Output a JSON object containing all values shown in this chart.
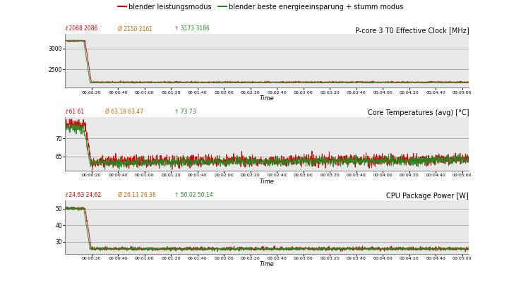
{
  "legend_red": "blender leistungsmodus",
  "legend_green": "blender beste energieeinsparung + stumm modus",
  "chart1": {
    "title": "P-core 3 T0 Effective Clock [MHz]",
    "stats_red": "ℓ 2068 2086",
    "stats_avg": "Ø 2150 2161",
    "stats_green": "↑ 3173 3186",
    "ylim": [
      2050,
      3350
    ],
    "yticks": [
      2500,
      3000
    ],
    "baseline_red": 2186,
    "baseline_green": 2175,
    "peak_red": 3186,
    "peak_green": 3200,
    "drop_sec": 15,
    "noise_red": 8,
    "noise_green": 5
  },
  "chart2": {
    "title": "Core Temperatures (avg) [°C]",
    "stats_red": "ℓ 61 61",
    "stats_avg": "Ø 63,18 63,47",
    "stats_green": "↑ 73 73",
    "ylim": [
      61,
      76
    ],
    "yticks": [
      65,
      70
    ],
    "baseline_red": 63.5,
    "baseline_green": 63.2,
    "peak_red": 74,
    "peak_green": 73,
    "drop_sec": 15,
    "noise_red": 0.8,
    "noise_green": 0.6,
    "trend": 0.8
  },
  "chart3": {
    "title": "CPU Package Power [W]",
    "stats_red": "ℓ 24,63 24,62",
    "stats_avg": "Ø 26,11 26,36",
    "stats_green": "↑ 50,02 50,14",
    "ylim": [
      23,
      55
    ],
    "yticks": [
      30,
      40,
      50
    ],
    "baseline_red": 26.0,
    "baseline_green": 25.8,
    "peak_red": 50,
    "peak_green": 50.1,
    "drop_sec": 15,
    "noise_red": 0.5,
    "noise_green": 0.4
  },
  "time_total": 305,
  "tick_interval": 20,
  "bg_color": "#ffffff",
  "plot_bg": "#e8e8e8",
  "color_red": "#cc0000",
  "color_green": "#228822",
  "color_stats_red": "#cc0000",
  "color_stats_green": "#228822",
  "color_stats_avg": "#cc6600"
}
